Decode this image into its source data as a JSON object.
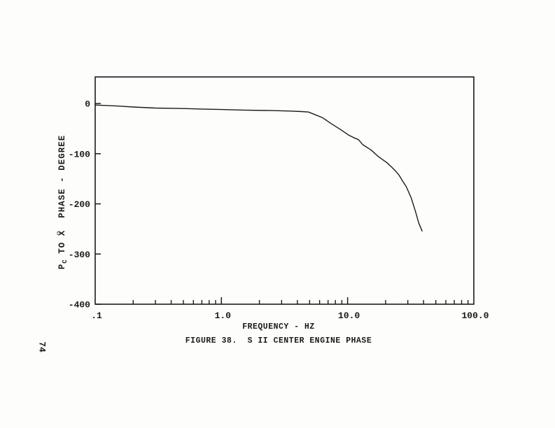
{
  "page": {
    "number": "74",
    "background": "#fdfdfb",
    "ink": "#1b1b1b"
  },
  "chart_data": {
    "type": "line",
    "title": "FIGURE 38.  S II CENTER ENGINE PHASE",
    "xlabel": "FREQUENCY - HZ",
    "ylabel": "Pc TO Ẍ  PHASE - DEGREE",
    "ylabel_parts": {
      "base": "P",
      "sub": "C",
      "rest": " TO Ẍ  PHASE - DEGREE"
    },
    "x_scale": "log",
    "xlim": [
      0.1,
      100
    ],
    "ylim": [
      -400,
      53
    ],
    "grid": false,
    "legend": "none",
    "y_ticks": {
      "values": [
        0,
        -100,
        -200,
        -300,
        -400
      ],
      "labels": [
        "0",
        "-100",
        "-200",
        "-300",
        "-400"
      ]
    },
    "x_ticks": {
      "values": [
        0.1,
        1,
        10,
        100
      ],
      "labels": [
        ".1",
        "1.0",
        "10.0",
        "100.0"
      ],
      "minor_per_decade": [
        2,
        3,
        4,
        5,
        6,
        7,
        8,
        9
      ]
    },
    "series": [
      {
        "name": "S II CENTER ENGINE PHASE",
        "points": [
          [
            0.1,
            -3
          ],
          [
            0.15,
            -5
          ],
          [
            0.2,
            -7
          ],
          [
            0.3,
            -9
          ],
          [
            0.5,
            -10
          ],
          [
            0.7,
            -11
          ],
          [
            1.0,
            -12
          ],
          [
            1.5,
            -13
          ],
          [
            2.5,
            -14
          ],
          [
            3.5,
            -15
          ],
          [
            4.3,
            -16
          ],
          [
            4.9,
            -17
          ],
          [
            5.5,
            -22
          ],
          [
            6.3,
            -28
          ],
          [
            7.4,
            -40
          ],
          [
            8.8,
            -52
          ],
          [
            10.2,
            -63
          ],
          [
            11.2,
            -68
          ],
          [
            12.2,
            -72
          ],
          [
            13.2,
            -82
          ],
          [
            15.4,
            -93
          ],
          [
            17.4,
            -105
          ],
          [
            20.5,
            -118
          ],
          [
            22.4,
            -127
          ],
          [
            23.9,
            -134
          ],
          [
            25.6,
            -143
          ],
          [
            27.0,
            -153
          ],
          [
            29.2,
            -166
          ],
          [
            31.9,
            -188
          ],
          [
            34.4,
            -214
          ],
          [
            36.6,
            -238
          ],
          [
            38.9,
            -254
          ]
        ]
      }
    ]
  }
}
